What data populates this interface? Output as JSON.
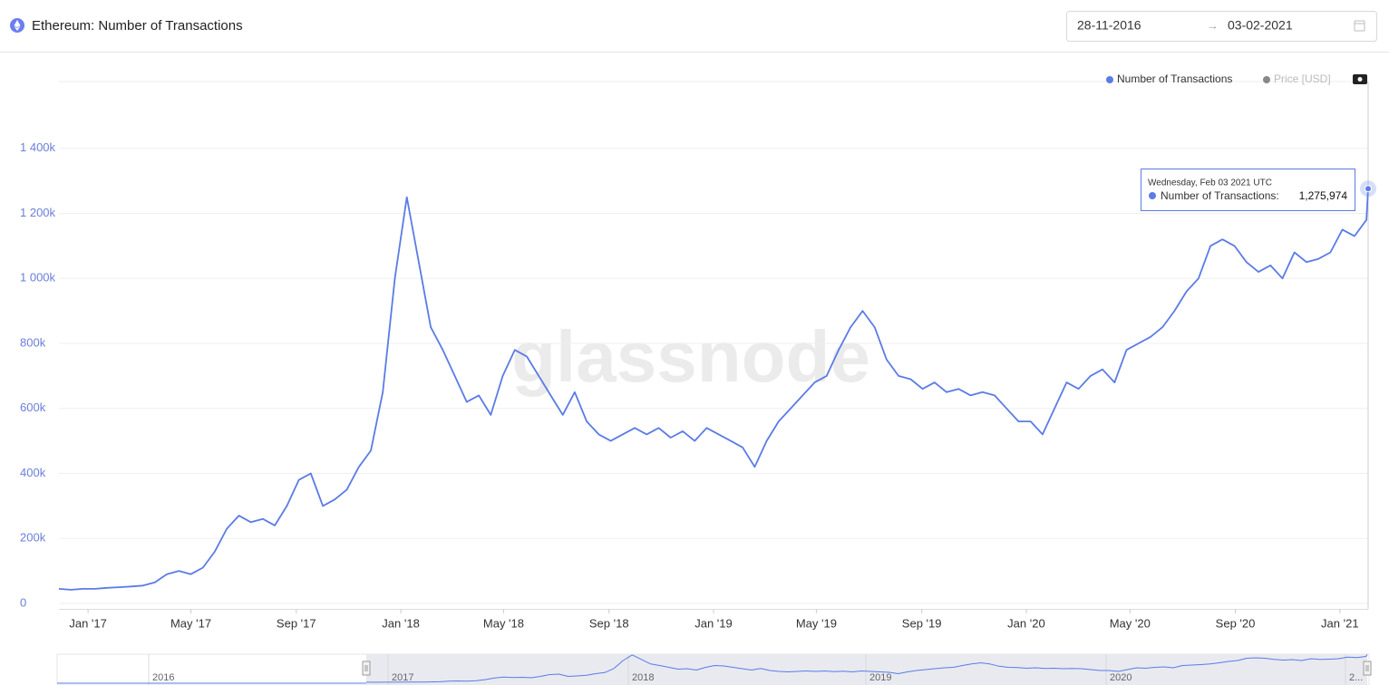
{
  "header": {
    "title": "Ethereum: Number of Transactions",
    "date_from": "28-11-2016",
    "date_to": "03-02-2021"
  },
  "chart_data": {
    "type": "line",
    "watermark": "glassnode",
    "xlim": [
      "2016-11-28",
      "2021-02-03"
    ],
    "xticks": [
      {
        "value": "2017-01-01",
        "label": "Jan '17"
      },
      {
        "value": "2017-05-01",
        "label": "May '17"
      },
      {
        "value": "2017-09-01",
        "label": "Sep '17"
      },
      {
        "value": "2018-01-01",
        "label": "Jan '18"
      },
      {
        "value": "2018-05-01",
        "label": "May '18"
      },
      {
        "value": "2018-09-01",
        "label": "Sep '18"
      },
      {
        "value": "2019-01-01",
        "label": "Jan '19"
      },
      {
        "value": "2019-05-01",
        "label": "May '19"
      },
      {
        "value": "2019-09-01",
        "label": "Sep '19"
      },
      {
        "value": "2020-01-01",
        "label": "Jan '20"
      },
      {
        "value": "2020-05-01",
        "label": "May '20"
      },
      {
        "value": "2020-09-01",
        "label": "Sep '20"
      },
      {
        "value": "2021-01-01",
        "label": "Jan '21"
      }
    ],
    "ylim": [
      0,
      1600000
    ],
    "yticks": [
      0,
      {
        "value": 200000,
        "label": "200k"
      },
      {
        "value": 400000,
        "label": "400k"
      },
      {
        "value": 600000,
        "label": "600k"
      },
      {
        "value": 800000,
        "label": "800k"
      },
      {
        "value": 1000000,
        "label": "1 000k"
      },
      {
        "value": 1200000,
        "label": "1 200k"
      },
      {
        "value": 1400000,
        "label": "1 400k"
      }
    ],
    "grid": true,
    "legend": [
      "Number of Transactions",
      "Price [USD]"
    ],
    "x": [
      "2016-11-28",
      "2016-12-12",
      "2016-12-26",
      "2017-01-09",
      "2017-01-23",
      "2017-02-06",
      "2017-02-20",
      "2017-03-06",
      "2017-03-20",
      "2017-04-03",
      "2017-04-17",
      "2017-05-01",
      "2017-05-15",
      "2017-05-29",
      "2017-06-12",
      "2017-06-26",
      "2017-07-10",
      "2017-07-24",
      "2017-08-07",
      "2017-08-21",
      "2017-09-04",
      "2017-09-18",
      "2017-10-02",
      "2017-10-16",
      "2017-10-30",
      "2017-11-13",
      "2017-11-27",
      "2017-12-11",
      "2017-12-25",
      "2018-01-08",
      "2018-01-22",
      "2018-02-05",
      "2018-02-19",
      "2018-03-05",
      "2018-03-19",
      "2018-04-02",
      "2018-04-16",
      "2018-04-30",
      "2018-05-14",
      "2018-05-28",
      "2018-06-11",
      "2018-06-25",
      "2018-07-09",
      "2018-07-23",
      "2018-08-06",
      "2018-08-20",
      "2018-09-03",
      "2018-09-17",
      "2018-10-01",
      "2018-10-15",
      "2018-10-29",
      "2018-11-12",
      "2018-11-26",
      "2018-12-10",
      "2018-12-24",
      "2019-01-07",
      "2019-01-21",
      "2019-02-04",
      "2019-02-18",
      "2019-03-04",
      "2019-03-18",
      "2019-04-01",
      "2019-04-15",
      "2019-04-29",
      "2019-05-13",
      "2019-05-27",
      "2019-06-10",
      "2019-06-24",
      "2019-07-08",
      "2019-07-22",
      "2019-08-05",
      "2019-08-19",
      "2019-09-02",
      "2019-09-16",
      "2019-09-30",
      "2019-10-14",
      "2019-10-28",
      "2019-11-11",
      "2019-11-25",
      "2019-12-09",
      "2019-12-23",
      "2020-01-06",
      "2020-01-20",
      "2020-02-03",
      "2020-02-17",
      "2020-03-02",
      "2020-03-16",
      "2020-03-30",
      "2020-04-13",
      "2020-04-27",
      "2020-05-11",
      "2020-05-25",
      "2020-06-08",
      "2020-06-22",
      "2020-07-06",
      "2020-07-20",
      "2020-08-03",
      "2020-08-17",
      "2020-08-31",
      "2020-09-14",
      "2020-09-28",
      "2020-10-12",
      "2020-10-26",
      "2020-11-09",
      "2020-11-23",
      "2020-12-07",
      "2020-12-21",
      "2021-01-04",
      "2021-01-18",
      "2021-02-01",
      "2021-02-03"
    ],
    "series": [
      {
        "name": "Number of Transactions",
        "color": "#5b7be6",
        "values": [
          45000,
          42000,
          45000,
          45000,
          48000,
          50000,
          52000,
          55000,
          65000,
          90000,
          100000,
          90000,
          110000,
          160000,
          230000,
          270000,
          250000,
          260000,
          240000,
          300000,
          380000,
          400000,
          300000,
          320000,
          350000,
          420000,
          470000,
          650000,
          1000000,
          1250000,
          1050000,
          850000,
          780000,
          700000,
          620000,
          640000,
          580000,
          700000,
          780000,
          760000,
          700000,
          640000,
          580000,
          650000,
          560000,
          520000,
          500000,
          520000,
          540000,
          520000,
          540000,
          510000,
          530000,
          500000,
          540000,
          520000,
          500000,
          480000,
          420000,
          500000,
          560000,
          600000,
          640000,
          680000,
          700000,
          780000,
          850000,
          900000,
          850000,
          750000,
          700000,
          690000,
          660000,
          680000,
          650000,
          660000,
          640000,
          650000,
          640000,
          600000,
          560000,
          560000,
          520000,
          600000,
          680000,
          660000,
          700000,
          720000,
          680000,
          780000,
          800000,
          820000,
          850000,
          900000,
          960000,
          1000000,
          1100000,
          1120000,
          1100000,
          1050000,
          1020000,
          1040000,
          1000000,
          1080000,
          1050000,
          1060000,
          1080000,
          1150000,
          1130000,
          1180000,
          1275974
        ]
      }
    ],
    "tooltip": {
      "date": "Wednesday, Feb 03 2021 UTC",
      "label": "Number of Transactions:",
      "value": "1,275,974"
    },
    "navigator_labels": [
      "2016",
      "2017",
      "2018",
      "2019",
      "2020",
      "2..."
    ]
  }
}
